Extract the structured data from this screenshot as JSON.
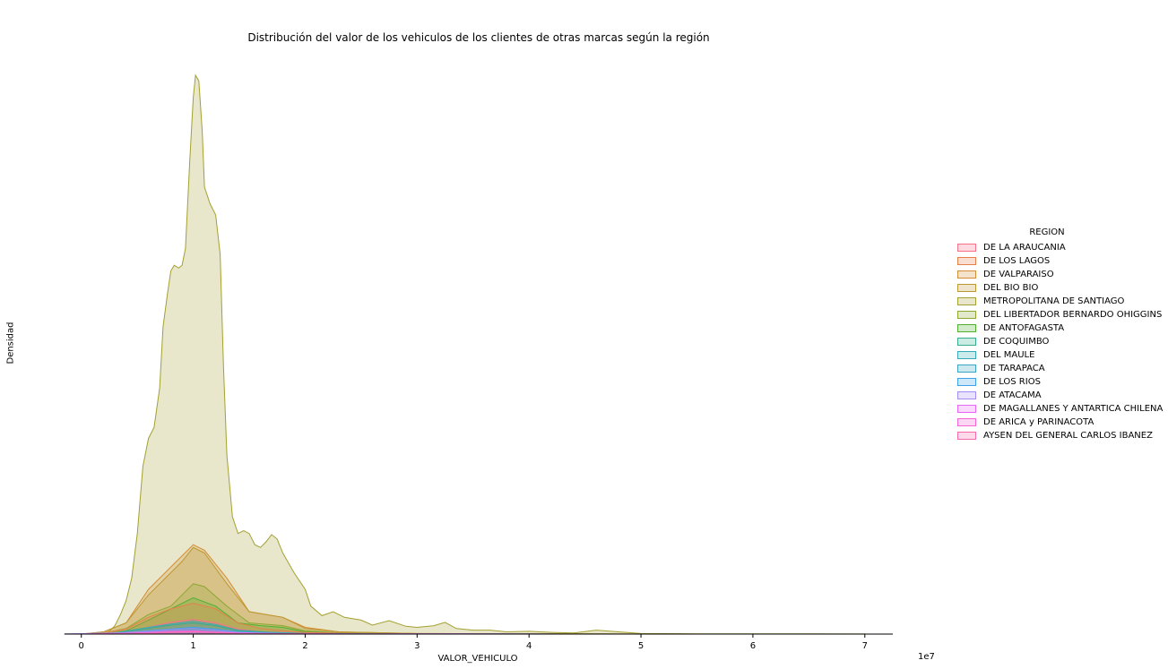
{
  "chart_data": {
    "type": "area",
    "title": "Distribución del valor de los vehiculos de los clientes de otras marcas según la región",
    "xlabel": "VALOR_VEHICULO",
    "ylabel": "Densidad",
    "x_offset_label": "1e7",
    "xlim": [
      -0.15,
      7.25
    ],
    "ylim": [
      0,
      1.0
    ],
    "xticks": [
      0,
      1,
      2,
      3,
      4,
      5,
      6,
      7
    ],
    "grid": false,
    "legend": {
      "title": "REGION",
      "placement": "right"
    },
    "series": [
      {
        "name": "DE LA ARAUCANIA",
        "color": "#f77189",
        "points": [
          [
            0,
            0
          ],
          [
            0.2,
            0.001
          ],
          [
            0.4,
            0.004
          ],
          [
            0.6,
            0.012
          ],
          [
            0.8,
            0.021
          ],
          [
            1.0,
            0.026
          ],
          [
            1.2,
            0.02
          ],
          [
            1.4,
            0.009
          ],
          [
            1.6,
            0.004
          ],
          [
            1.8,
            0.003
          ],
          [
            2.0,
            0.0015
          ],
          [
            2.5,
            0.0005
          ],
          [
            3,
            0.0002
          ],
          [
            5,
            0
          ],
          [
            7,
            0
          ]
        ]
      },
      {
        "name": "DE LOS LAGOS",
        "color": "#e5804a",
        "points": [
          [
            0,
            0
          ],
          [
            0.2,
            0.002
          ],
          [
            0.4,
            0.009
          ],
          [
            0.6,
            0.03
          ],
          [
            0.8,
            0.045
          ],
          [
            1.0,
            0.055
          ],
          [
            1.2,
            0.045
          ],
          [
            1.4,
            0.02
          ],
          [
            1.6,
            0.01
          ],
          [
            1.8,
            0.006
          ],
          [
            2.0,
            0.003
          ],
          [
            2.5,
            0.001
          ],
          [
            3,
            0.0003
          ],
          [
            5,
            0
          ],
          [
            7,
            0
          ]
        ]
      },
      {
        "name": "DE VALPARAISO",
        "color": "#d58c32",
        "points": [
          [
            0,
            0
          ],
          [
            0.2,
            0.004
          ],
          [
            0.4,
            0.02
          ],
          [
            0.6,
            0.08
          ],
          [
            0.8,
            0.12
          ],
          [
            0.9,
            0.14
          ],
          [
            1.0,
            0.16
          ],
          [
            1.1,
            0.15
          ],
          [
            1.3,
            0.1
          ],
          [
            1.5,
            0.04
          ],
          [
            1.8,
            0.03
          ],
          [
            2.0,
            0.012
          ],
          [
            2.3,
            0.004
          ],
          [
            3,
            0.001
          ],
          [
            5,
            0
          ],
          [
            7,
            0
          ]
        ]
      },
      {
        "name": "DEL BIO BIO",
        "color": "#bb9832",
        "points": [
          [
            0,
            0
          ],
          [
            0.2,
            0.004
          ],
          [
            0.4,
            0.02
          ],
          [
            0.6,
            0.07
          ],
          [
            0.8,
            0.11
          ],
          [
            0.9,
            0.13
          ],
          [
            1.0,
            0.155
          ],
          [
            1.1,
            0.145
          ],
          [
            1.3,
            0.09
          ],
          [
            1.5,
            0.04
          ],
          [
            1.8,
            0.03
          ],
          [
            2.0,
            0.01
          ],
          [
            2.3,
            0.004
          ],
          [
            3,
            0.001
          ],
          [
            5,
            0
          ],
          [
            7,
            0
          ]
        ]
      },
      {
        "name": "METROPOLITANA DE SANTIAGO",
        "color": "#a4a031",
        "points": [
          [
            0,
            0
          ],
          [
            0.1,
            0.0005
          ],
          [
            0.2,
            0.002
          ],
          [
            0.25,
            0.005
          ],
          [
            0.3,
            0.015
          ],
          [
            0.35,
            0.035
          ],
          [
            0.4,
            0.06
          ],
          [
            0.45,
            0.1
          ],
          [
            0.5,
            0.18
          ],
          [
            0.55,
            0.3
          ],
          [
            0.6,
            0.35
          ],
          [
            0.65,
            0.37
          ],
          [
            0.7,
            0.44
          ],
          [
            0.73,
            0.55
          ],
          [
            0.77,
            0.61
          ],
          [
            0.8,
            0.65
          ],
          [
            0.83,
            0.66
          ],
          [
            0.87,
            0.655
          ],
          [
            0.9,
            0.66
          ],
          [
            0.93,
            0.69
          ],
          [
            0.97,
            0.85
          ],
          [
            1.0,
            0.96
          ],
          [
            1.02,
            1.0
          ],
          [
            1.05,
            0.99
          ],
          [
            1.08,
            0.9
          ],
          [
            1.1,
            0.8
          ],
          [
            1.15,
            0.77
          ],
          [
            1.2,
            0.75
          ],
          [
            1.24,
            0.68
          ],
          [
            1.27,
            0.48
          ],
          [
            1.3,
            0.32
          ],
          [
            1.35,
            0.21
          ],
          [
            1.4,
            0.18
          ],
          [
            1.45,
            0.185
          ],
          [
            1.5,
            0.18
          ],
          [
            1.55,
            0.16
          ],
          [
            1.6,
            0.155
          ],
          [
            1.65,
            0.165
          ],
          [
            1.7,
            0.178
          ],
          [
            1.75,
            0.17
          ],
          [
            1.8,
            0.145
          ],
          [
            1.9,
            0.11
          ],
          [
            2.0,
            0.08
          ],
          [
            2.05,
            0.05
          ],
          [
            2.15,
            0.033
          ],
          [
            2.25,
            0.04
          ],
          [
            2.35,
            0.03
          ],
          [
            2.5,
            0.025
          ],
          [
            2.6,
            0.016
          ],
          [
            2.75,
            0.024
          ],
          [
            2.9,
            0.014
          ],
          [
            3.0,
            0.012
          ],
          [
            3.15,
            0.015
          ],
          [
            3.25,
            0.021
          ],
          [
            3.35,
            0.01
          ],
          [
            3.5,
            0.007
          ],
          [
            3.65,
            0.007
          ],
          [
            3.8,
            0.004
          ],
          [
            4.0,
            0.005
          ],
          [
            4.2,
            0.003
          ],
          [
            4.4,
            0.002
          ],
          [
            4.6,
            0.007
          ],
          [
            4.8,
            0.004
          ],
          [
            5.0,
            0.001
          ],
          [
            5.5,
            0.0005
          ],
          [
            6,
            0.0005
          ],
          [
            6.5,
            0.0003
          ],
          [
            7.0,
            0.0001
          ]
        ]
      },
      {
        "name": "DEL LIBERTADOR BERNARDO OHIGGINS",
        "color": "#8ca830",
        "points": [
          [
            0,
            0
          ],
          [
            0.2,
            0.002
          ],
          [
            0.4,
            0.01
          ],
          [
            0.6,
            0.035
          ],
          [
            0.8,
            0.05
          ],
          [
            0.9,
            0.07
          ],
          [
            1.0,
            0.09
          ],
          [
            1.1,
            0.085
          ],
          [
            1.3,
            0.05
          ],
          [
            1.5,
            0.02
          ],
          [
            1.8,
            0.015
          ],
          [
            2.0,
            0.006
          ],
          [
            2.3,
            0.002
          ],
          [
            3,
            0.0005
          ],
          [
            5,
            0
          ],
          [
            7,
            0
          ]
        ]
      },
      {
        "name": "DE ANTOFAGASTA",
        "color": "#50b131",
        "points": [
          [
            0,
            0
          ],
          [
            0.2,
            0.001
          ],
          [
            0.4,
            0.006
          ],
          [
            0.6,
            0.025
          ],
          [
            0.8,
            0.045
          ],
          [
            1.0,
            0.065
          ],
          [
            1.2,
            0.05
          ],
          [
            1.4,
            0.02
          ],
          [
            1.6,
            0.015
          ],
          [
            1.8,
            0.012
          ],
          [
            2.0,
            0.004
          ],
          [
            2.5,
            0.001
          ],
          [
            3,
            0.0003
          ],
          [
            5,
            0
          ],
          [
            7,
            0
          ]
        ]
      },
      {
        "name": "DE COQUIMBO",
        "color": "#34ae91",
        "points": [
          [
            0,
            0
          ],
          [
            0.3,
            0.002
          ],
          [
            0.6,
            0.01
          ],
          [
            0.8,
            0.016
          ],
          [
            1.0,
            0.02
          ],
          [
            1.2,
            0.015
          ],
          [
            1.4,
            0.006
          ],
          [
            1.7,
            0.003
          ],
          [
            2.0,
            0.001
          ],
          [
            3,
            0.0002
          ],
          [
            5,
            0
          ],
          [
            7,
            0
          ]
        ]
      },
      {
        "name": "DEL MAULE",
        "color": "#37abb5",
        "points": [
          [
            0,
            0
          ],
          [
            0.3,
            0.002
          ],
          [
            0.6,
            0.012
          ],
          [
            0.8,
            0.018
          ],
          [
            1.0,
            0.023
          ],
          [
            1.2,
            0.017
          ],
          [
            1.4,
            0.007
          ],
          [
            1.7,
            0.003
          ],
          [
            2.0,
            0.001
          ],
          [
            3,
            0.0002
          ],
          [
            5,
            0
          ],
          [
            7,
            0
          ]
        ]
      },
      {
        "name": "DE TARAPACA",
        "color": "#3aa5c3",
        "points": [
          [
            0,
            0
          ],
          [
            0.3,
            0.001
          ],
          [
            0.6,
            0.005
          ],
          [
            0.8,
            0.008
          ],
          [
            1.0,
            0.01
          ],
          [
            1.2,
            0.007
          ],
          [
            1.4,
            0.003
          ],
          [
            1.7,
            0.0015
          ],
          [
            2.0,
            0.0005
          ],
          [
            3,
            0.0001
          ],
          [
            5,
            0
          ],
          [
            7,
            0
          ]
        ]
      },
      {
        "name": "DE LOS RIOS",
        "color": "#3ba3ec",
        "points": [
          [
            0,
            0
          ],
          [
            0.3,
            0.001
          ],
          [
            0.6,
            0.006
          ],
          [
            0.8,
            0.009
          ],
          [
            1.0,
            0.012
          ],
          [
            1.2,
            0.009
          ],
          [
            1.4,
            0.004
          ],
          [
            1.7,
            0.002
          ],
          [
            2.0,
            0.0006
          ],
          [
            3,
            0.0001
          ],
          [
            5,
            0
          ],
          [
            7,
            0
          ]
        ]
      },
      {
        "name": "DE ATACAMA",
        "color": "#a48cf4",
        "points": [
          [
            -0.15,
            0.0005
          ],
          [
            0,
            0.0008
          ],
          [
            0.3,
            0.002
          ],
          [
            0.6,
            0.005
          ],
          [
            0.8,
            0.008
          ],
          [
            1.0,
            0.01
          ],
          [
            1.2,
            0.007
          ],
          [
            1.4,
            0.003
          ],
          [
            1.7,
            0.0012
          ],
          [
            2.0,
            0.0004
          ],
          [
            3,
            0.0001
          ],
          [
            5,
            0
          ],
          [
            7,
            0
          ]
        ]
      },
      {
        "name": "DE MAGALLANES Y ANTARTICA CHILENA",
        "color": "#e866f4",
        "points": [
          [
            0,
            0
          ],
          [
            0.3,
            0.0008
          ],
          [
            0.6,
            0.003
          ],
          [
            0.8,
            0.005
          ],
          [
            1.0,
            0.006
          ],
          [
            1.2,
            0.004
          ],
          [
            1.4,
            0.002
          ],
          [
            1.7,
            0.001
          ],
          [
            2.0,
            0.0003
          ],
          [
            3,
            0.0001
          ],
          [
            5,
            0
          ],
          [
            7,
            0
          ]
        ]
      },
      {
        "name": "DE ARICA y PARINACOTA",
        "color": "#f564d4",
        "points": [
          [
            0,
            0
          ],
          [
            0.3,
            0.0006
          ],
          [
            0.6,
            0.002
          ],
          [
            0.8,
            0.004
          ],
          [
            1.0,
            0.005
          ],
          [
            1.2,
            0.003
          ],
          [
            1.4,
            0.0015
          ],
          [
            1.7,
            0.0008
          ],
          [
            2.0,
            0.0003
          ],
          [
            3,
            0.0001
          ],
          [
            5,
            0
          ],
          [
            7,
            0
          ]
        ]
      },
      {
        "name": "AYSEN DEL GENERAL CARLOS IBANEZ",
        "color": "#f66bad",
        "points": [
          [
            0,
            0
          ],
          [
            0.3,
            0.0005
          ],
          [
            0.6,
            0.0015
          ],
          [
            0.8,
            0.003
          ],
          [
            1.0,
            0.004
          ],
          [
            1.2,
            0.0025
          ],
          [
            1.4,
            0.001
          ],
          [
            1.7,
            0.0005
          ],
          [
            2.0,
            0.0002
          ],
          [
            3,
            0.0001
          ],
          [
            5,
            0
          ],
          [
            7,
            0
          ]
        ]
      }
    ]
  }
}
